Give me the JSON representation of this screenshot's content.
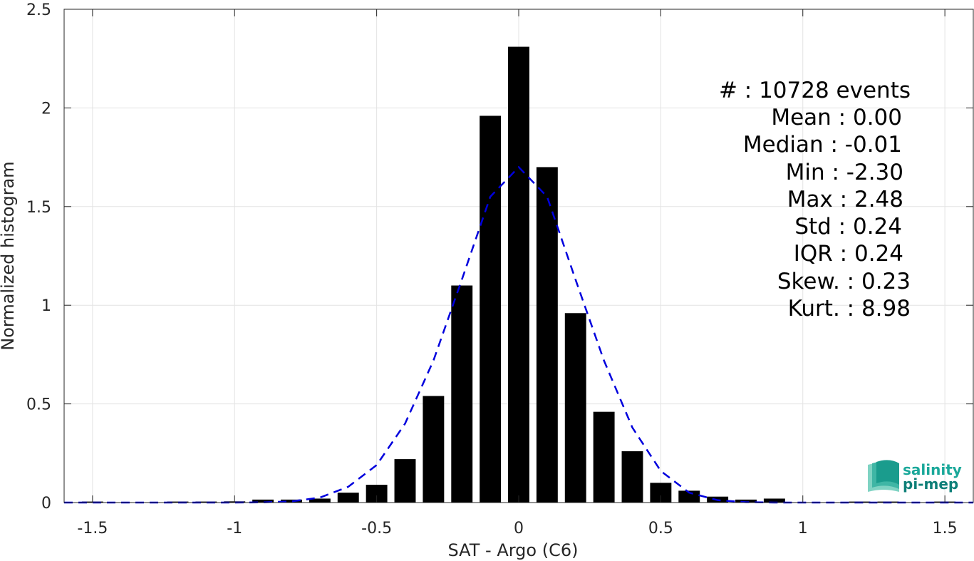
{
  "chart_data": {
    "type": "bar",
    "title": "",
    "xlabel": "SAT - Argo (C6)",
    "ylabel": "Normalized histogram",
    "xlim": [
      -1.6,
      1.6
    ],
    "ylim": [
      0,
      2.5
    ],
    "grid": true,
    "xticks": [
      -1.5,
      -1,
      -0.5,
      0,
      0.5,
      1,
      1.5
    ],
    "xtick_labels": [
      "-1.5",
      "-1",
      "-0.5",
      "0",
      "0.5",
      "1",
      "1.5"
    ],
    "yticks": [
      0,
      0.5,
      1,
      1.5,
      2,
      2.5
    ],
    "ytick_labels": [
      "0",
      "0.5",
      "1",
      "1.5",
      "2",
      "2.5"
    ],
    "bar_width": 0.075,
    "bar_color": "#000000",
    "bars": {
      "x": [
        -1.5,
        -1.4,
        -1.3,
        -1.2,
        -1.1,
        -1.0,
        -0.9,
        -0.8,
        -0.7,
        -0.6,
        -0.5,
        -0.4,
        -0.3,
        -0.2,
        -0.1,
        0.0,
        0.1,
        0.2,
        0.3,
        0.4,
        0.5,
        0.6,
        0.7,
        0.8,
        0.9,
        1.0,
        1.1,
        1.2,
        1.3,
        1.4,
        1.5
      ],
      "y": [
        0.005,
        0.002,
        0.002,
        0.005,
        0.005,
        0.006,
        0.015,
        0.015,
        0.02,
        0.05,
        0.09,
        0.22,
        0.54,
        1.1,
        1.96,
        2.31,
        1.7,
        0.96,
        0.46,
        0.26,
        0.1,
        0.06,
        0.03,
        0.015,
        0.02,
        0.002,
        0.002,
        0.005,
        0.005,
        0.002,
        0.005
      ]
    },
    "fit": {
      "style": "dashed",
      "color": "#0000dd",
      "x": [
        -1.6,
        -1.5,
        -1.4,
        -1.3,
        -1.2,
        -1.1,
        -1.0,
        -0.9,
        -0.8,
        -0.7,
        -0.6,
        -0.5,
        -0.4,
        -0.3,
        -0.2,
        -0.1,
        0.0,
        0.1,
        0.2,
        0.3,
        0.4,
        0.5,
        0.6,
        0.7,
        0.8,
        0.9,
        1.0,
        1.1,
        1.2,
        1.3,
        1.4,
        1.5,
        1.6
      ],
      "y": [
        0,
        0,
        0,
        0,
        0,
        0,
        0,
        0.001,
        0.006,
        0.025,
        0.08,
        0.19,
        0.4,
        0.72,
        1.13,
        1.55,
        1.7,
        1.55,
        1.13,
        0.72,
        0.38,
        0.16,
        0.05,
        0.012,
        0.002,
        0,
        0,
        0,
        0,
        0,
        0,
        0,
        0
      ]
    }
  },
  "stats": [
    "#  : 10728 events",
    "Mean : 0.00",
    "Median : -0.01",
    "Min : -2.30",
    "Max : 2.48",
    "Std : 0.24",
    "IQR : 0.24",
    "Skew. : 0.23",
    "Kurt. : 8.98"
  ],
  "logo": {
    "line1": "salinity",
    "line2": "pi-mep",
    "color1": "#1aa89a",
    "color2": "#0e7f78"
  }
}
